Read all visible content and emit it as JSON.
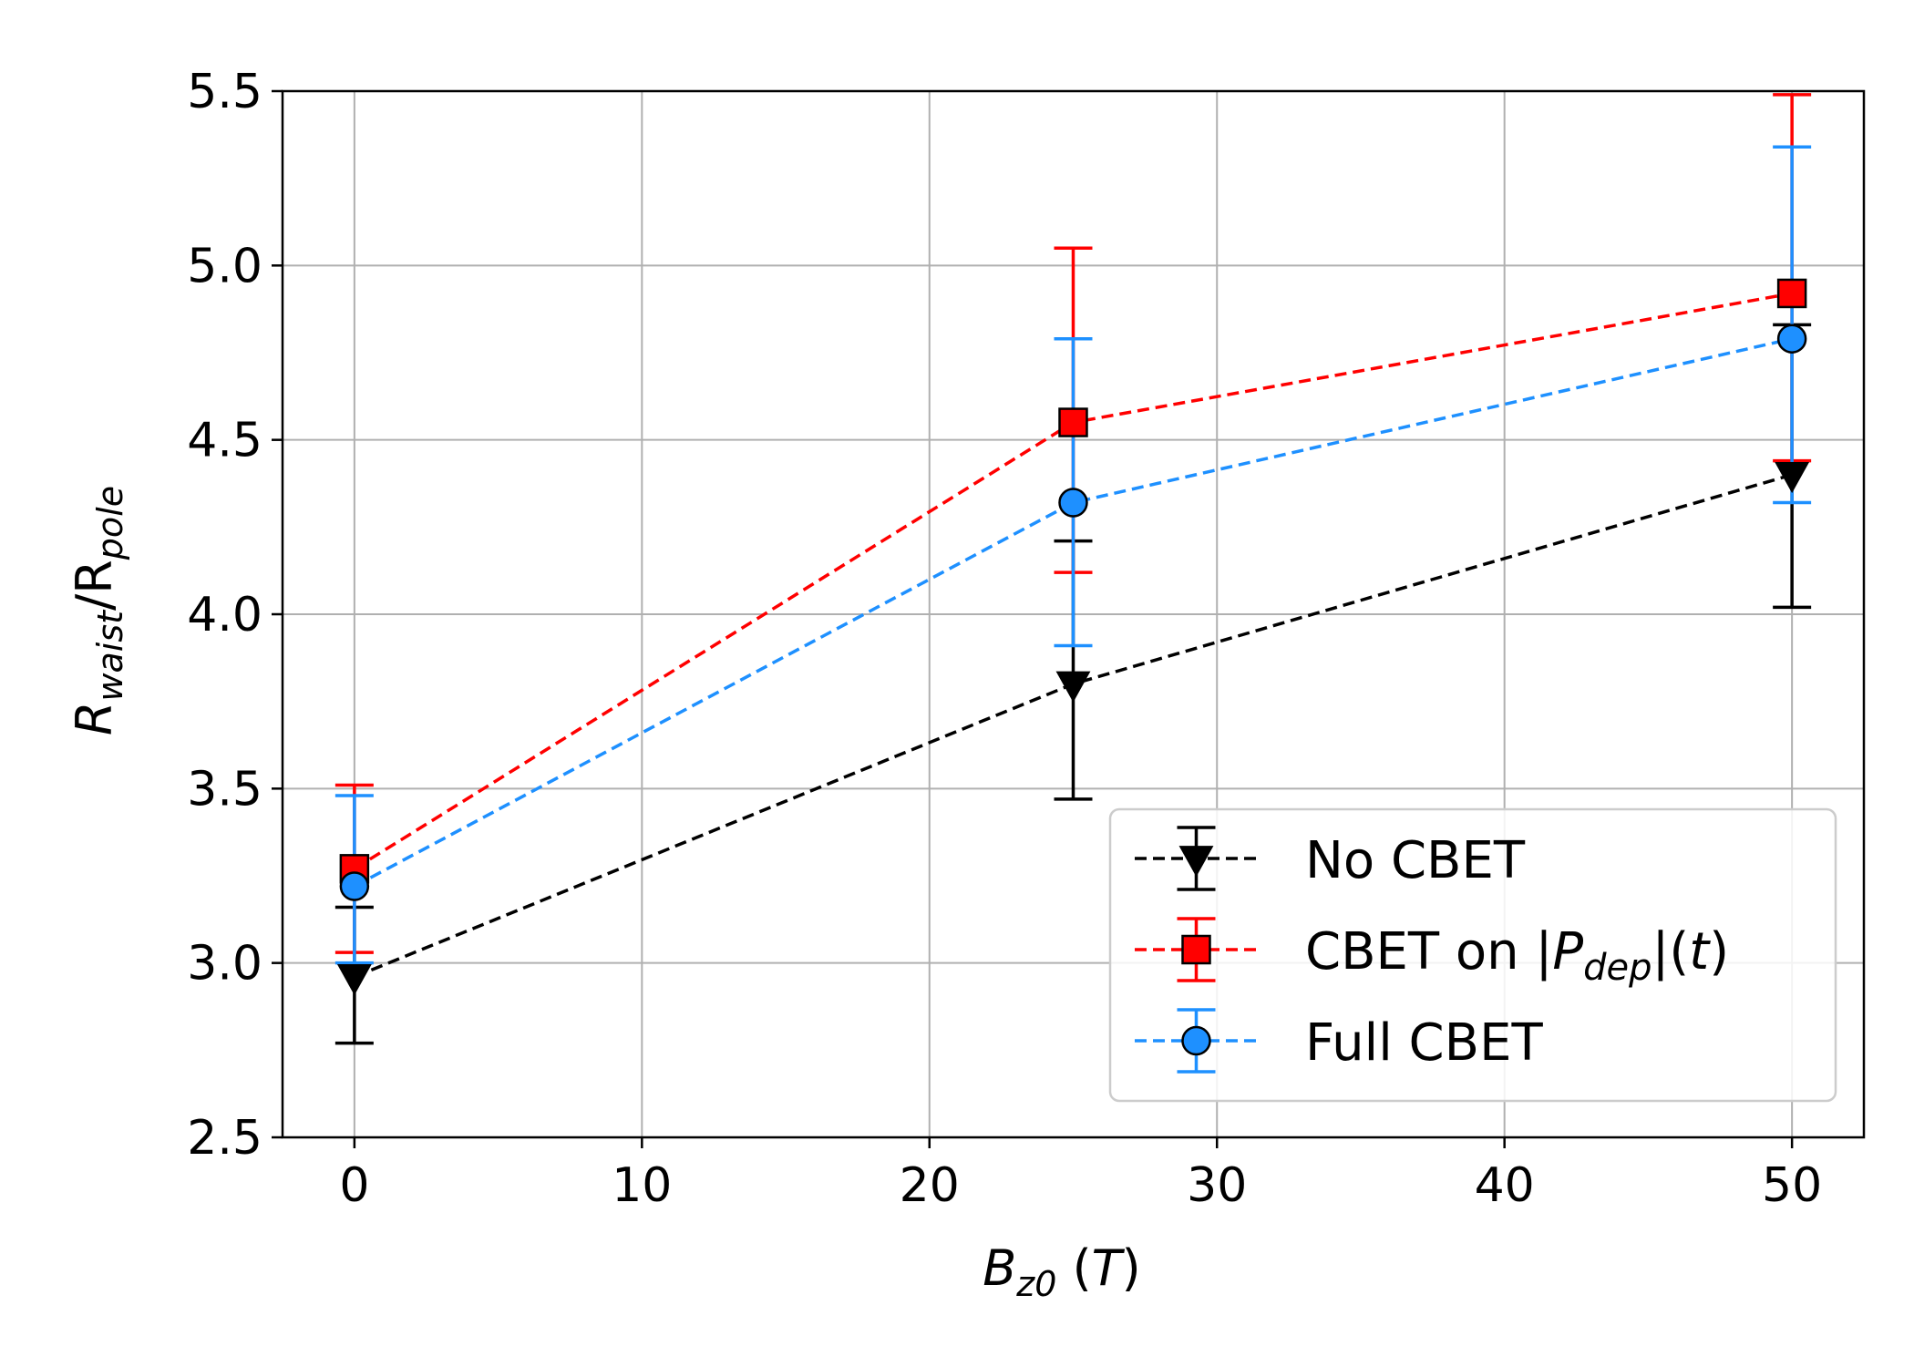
{
  "chart_data": {
    "type": "line",
    "title": "",
    "xlabel": {
      "main": "B",
      "sub": "z0",
      "unit": "T"
    },
    "ylabel": {
      "num_main": "R",
      "num_sub": "waist",
      "den_main": "R",
      "den_sub": "pole"
    },
    "xlim": [
      -2.5,
      52.5
    ],
    "ylim": [
      2.5,
      5.5
    ],
    "x_ticks": [
      0,
      10,
      20,
      30,
      40,
      50
    ],
    "y_ticks": [
      2.5,
      3.0,
      3.5,
      4.0,
      4.5,
      5.0,
      5.5
    ],
    "x_tick_labels": [
      "0",
      "10",
      "20",
      "30",
      "40",
      "50"
    ],
    "y_tick_labels": [
      "2.5",
      "3.0",
      "3.5",
      "4.0",
      "4.5",
      "5.0",
      "5.5"
    ],
    "grid": true,
    "legend_position": "lower-right",
    "x": [
      0,
      25,
      50
    ],
    "series": [
      {
        "key": "no-cbet",
        "name": "No CBET",
        "color": "#000000",
        "marker": "triangle-down",
        "values": [
          2.96,
          3.8,
          4.4
        ],
        "err_low": [
          2.77,
          3.47,
          4.02
        ],
        "err_high": [
          3.16,
          4.21,
          4.83
        ]
      },
      {
        "key": "cbet-pdep",
        "name_parts": {
          "pre": "CBET on |",
          "var": "P",
          "sub": "dep",
          "post": "|(",
          "t": "t",
          "close": ")"
        },
        "color": "#ff0000",
        "marker": "square",
        "values": [
          3.27,
          4.55,
          4.92
        ],
        "err_low": [
          3.03,
          4.12,
          4.44
        ],
        "err_high": [
          3.51,
          5.05,
          5.49
        ]
      },
      {
        "key": "full-cbet",
        "name": "Full CBET",
        "color": "#1e90ff",
        "marker": "circle",
        "values": [
          3.22,
          4.32,
          4.79
        ],
        "err_low": [
          3.0,
          3.91,
          4.32
        ],
        "err_high": [
          3.48,
          4.79,
          5.34
        ]
      }
    ]
  }
}
